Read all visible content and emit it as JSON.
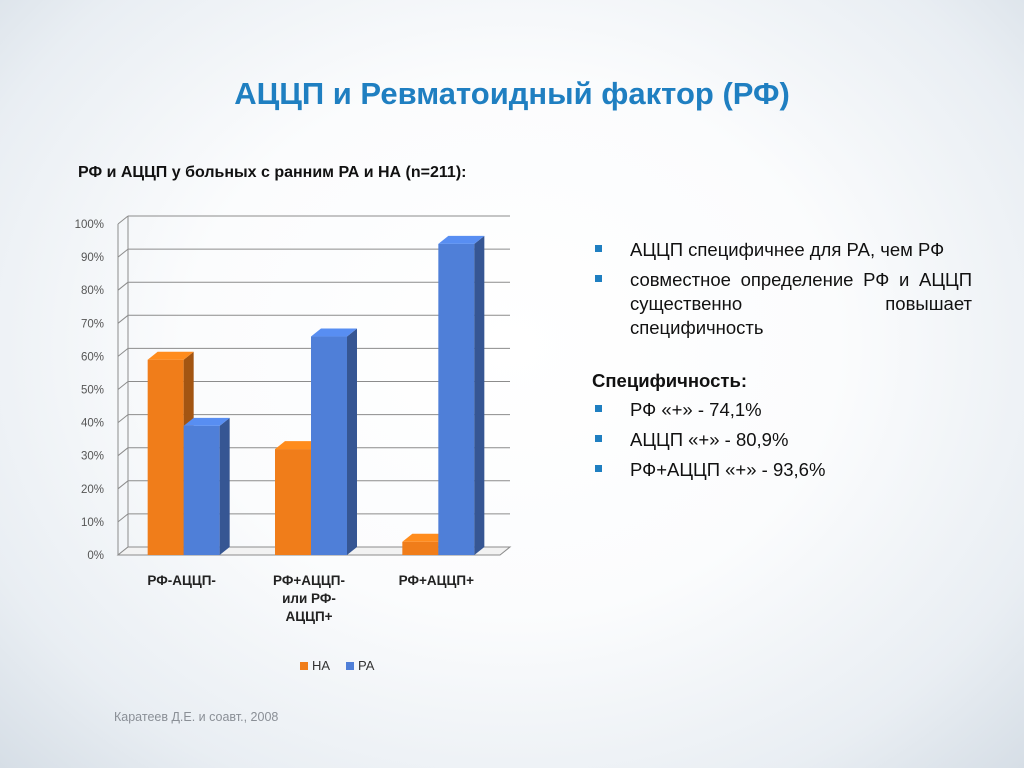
{
  "title": "АЦЦП и Ревматоидный фактор (РФ)",
  "subtitle": "РФ и АЦЦП у больных с ранним РА и НА (n=211):",
  "bullets": [
    "АЦЦП специфичнее для РА, чем РФ",
    "совместное определение РФ и АЦЦП существенно повышает специфичность"
  ],
  "specificity": {
    "heading": "Специфичность:",
    "items": [
      "РФ «+» - 74,1%",
      "АЦЦП «+» - 80,9%",
      "РФ+АЦЦП «+» - 93,6%"
    ]
  },
  "source": "Каратеев Д.Е. и соавт., 2008",
  "colors": {
    "title": "#1f7fc1",
    "bullet": "#1f7fc1",
    "series_na": "#f07d1a",
    "series_ra": "#4f7fd8"
  },
  "chart_data": {
    "type": "bar",
    "categories": [
      [
        "РФ-АЦЦП-"
      ],
      [
        "РФ+АЦЦП-",
        "или РФ-",
        "АЦЦП+"
      ],
      [
        "РФ+АЦЦП+"
      ]
    ],
    "series": [
      {
        "name": "НА",
        "values": [
          59,
          32,
          4
        ]
      },
      {
        "name": "РА",
        "values": [
          39,
          66,
          94
        ]
      }
    ],
    "ylim": [
      0,
      100
    ],
    "yticks": [
      "0%",
      "10%",
      "20%",
      "30%",
      "40%",
      "50%",
      "60%",
      "70%",
      "80%",
      "90%",
      "100%"
    ],
    "grid": true,
    "legend": "bottom",
    "style": "3d-clustered-column"
  }
}
